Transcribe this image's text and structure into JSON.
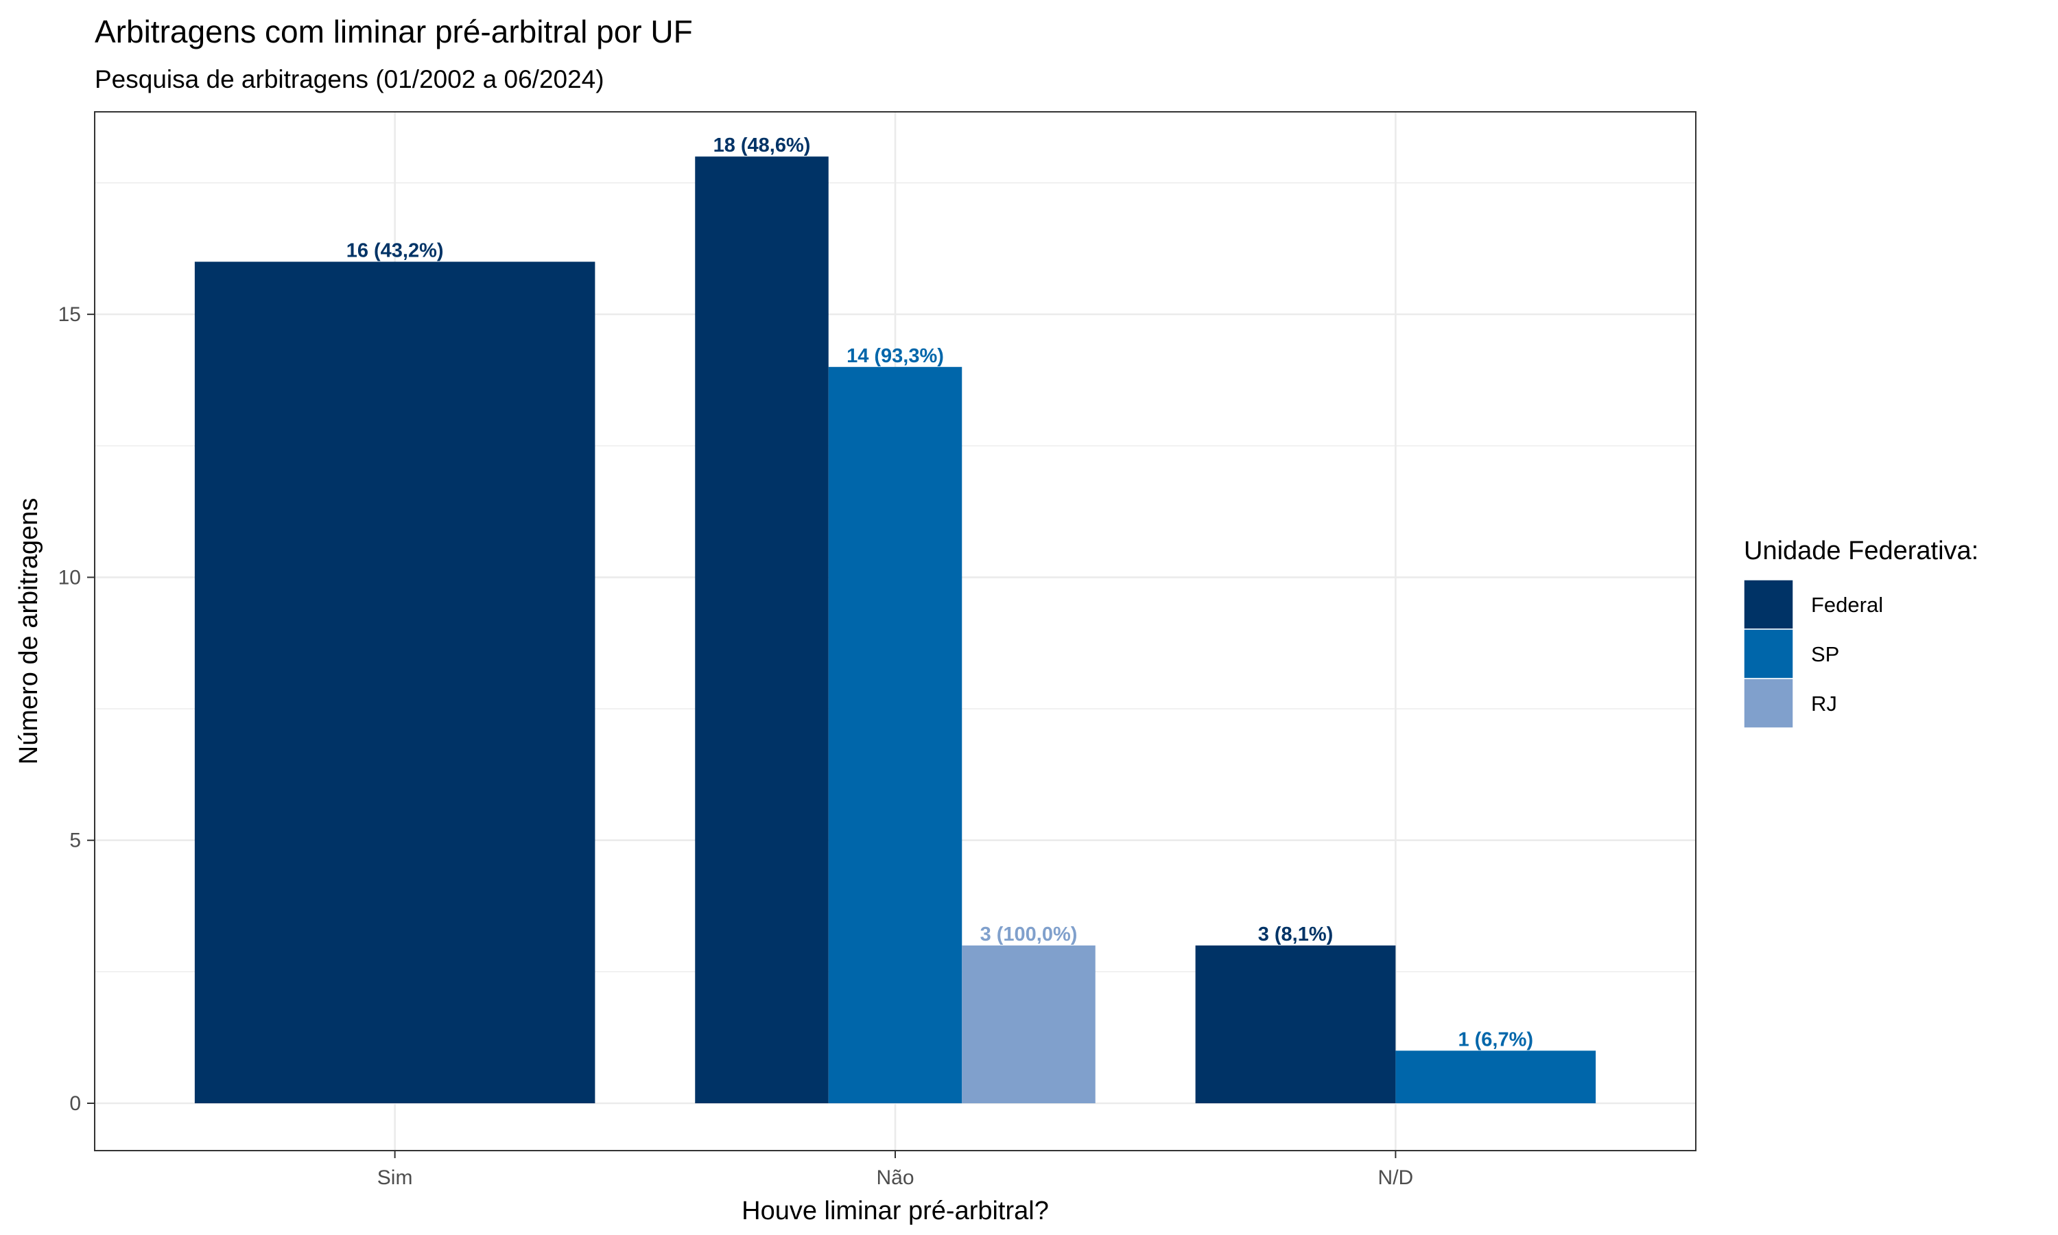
{
  "chart_data": {
    "type": "bar",
    "title": "Arbitragens com liminar pré-arbitral por UF",
    "subtitle": "Pesquisa de arbitragens (01/2002 a 06/2024)",
    "xlabel": "Houve liminar pré-arbitral?",
    "ylabel": "Número de arbitragens",
    "categories": [
      "Sim",
      "Não",
      "N/D"
    ],
    "ylim": [
      -0.9,
      18.85
    ],
    "yticks": [
      "0",
      "5",
      "10",
      "15"
    ],
    "grid": true,
    "legend": {
      "title": "Unidade Federativa:",
      "position": "right"
    },
    "series": [
      {
        "name": "Federal",
        "color": "#003366",
        "values": [
          16,
          18,
          3
        ],
        "labels": [
          "16 (43,2%)",
          "18 (48,6%)",
          "3 (8,1%)"
        ]
      },
      {
        "name": "SP",
        "color": "#0066AA",
        "values": [
          null,
          14,
          1
        ],
        "labels": [
          "",
          "14 (93,3%)",
          "1 (6,7%)"
        ]
      },
      {
        "name": "RJ",
        "color": "#80A0CC",
        "values": [
          null,
          3,
          null
        ],
        "labels": [
          "",
          "3 (100,0%)",
          ""
        ]
      }
    ]
  }
}
